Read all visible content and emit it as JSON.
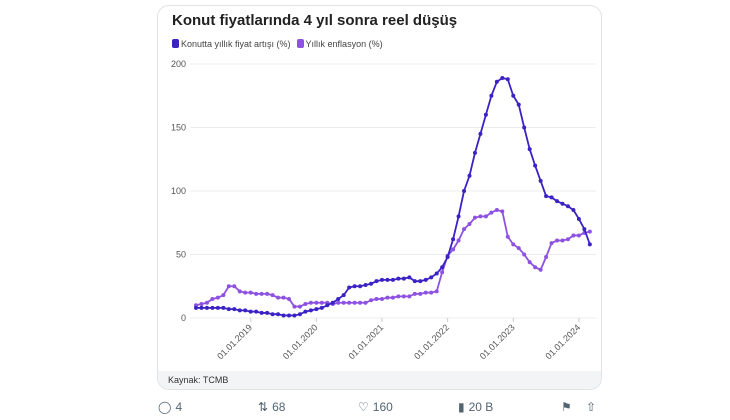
{
  "chart_data": {
    "type": "line",
    "title": "Konut fiyatlarında 4 yıl sonra reel düşüş",
    "start_month": "2018-03",
    "x_tick_labels": [
      "01.01.2019",
      "01.01.2020",
      "01.01.2021",
      "01.01.2022",
      "01.01.2023",
      "01.01.2024"
    ],
    "y_ticks": [
      0,
      50,
      100,
      150,
      200
    ],
    "ylim": [
      0,
      200
    ],
    "grid": true,
    "legend_position": "top-left",
    "series": [
      {
        "name": "Konutta yıllık fiyat artışı (%)",
        "color": "#3a22c4",
        "values": [
          8,
          8,
          8,
          8,
          8,
          8,
          7,
          7,
          6,
          6,
          5,
          5,
          4,
          4,
          3,
          3,
          2,
          2,
          2,
          3,
          5,
          6,
          7,
          8,
          10,
          12,
          15,
          18,
          24,
          25,
          25,
          26,
          27,
          29,
          30,
          30,
          30,
          31,
          31,
          32,
          29,
          29,
          30,
          32,
          35,
          40,
          48,
          62,
          80,
          100,
          112,
          130,
          145,
          160,
          175,
          186,
          189,
          188,
          175,
          168,
          150,
          133,
          120,
          108,
          96,
          95,
          92,
          90,
          88,
          85,
          78,
          70,
          58
        ]
      },
      {
        "name": "Yıllık enflasyon (%)",
        "color": "#8e52e0",
        "values": [
          10,
          11,
          12,
          15,
          16,
          18,
          25,
          25,
          21,
          20,
          20,
          19,
          19,
          19,
          18,
          16,
          16,
          15,
          9,
          9,
          11,
          12,
          12,
          12,
          12,
          11,
          12,
          12,
          12,
          12,
          12,
          12,
          14,
          15,
          15,
          16,
          16,
          17,
          17,
          17,
          19,
          19,
          20,
          20,
          21,
          36,
          49,
          54,
          61,
          70,
          74,
          79,
          80,
          80,
          83,
          85,
          84,
          64,
          58,
          55,
          50,
          44,
          40,
          38,
          48,
          59,
          61,
          61,
          62,
          65,
          65,
          67,
          68
        ]
      }
    ],
    "source": "Kaynak: TCMB"
  },
  "actions": {
    "replies": "4",
    "reposts": "68",
    "likes": "160",
    "views": "20 B"
  }
}
